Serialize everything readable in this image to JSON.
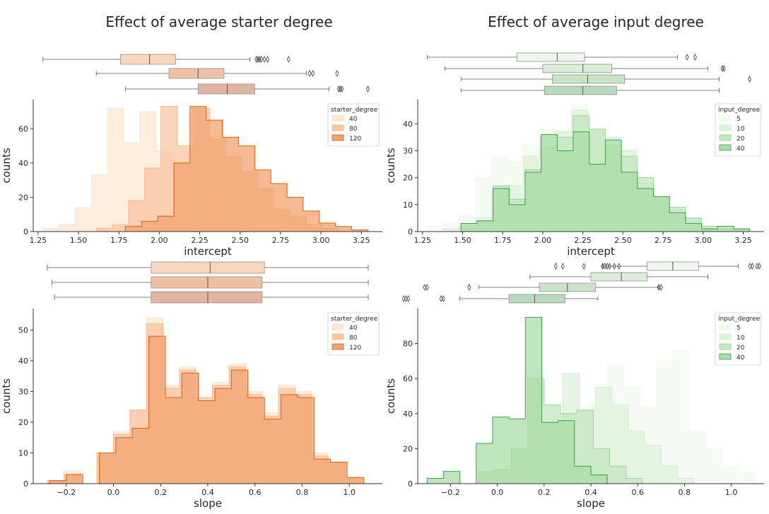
{
  "colors": {
    "starter": [
      "#fde5cf",
      "#f6b98a",
      "#d95f0e"
    ],
    "starter_fill": [
      "#fde6d2",
      "#f8c5a1",
      "#f1a36f"
    ],
    "starter_box": [
      "#f9d7bd",
      "#efc1a3",
      "#e0b6a3"
    ],
    "input": [
      "#f2f9f0",
      "#d2ecd0",
      "#9fd39a",
      "#3e9e52"
    ],
    "input_fill": [
      "#f2f9f0",
      "#ddf1da",
      "#c2e6bd",
      "#a9dca6"
    ],
    "input_box": [
      "#eef7ec",
      "#dbecd8",
      "#c9e3c6",
      "#b6d9bf"
    ]
  },
  "panels": [
    {
      "id": "starter-intercept",
      "title": "Effect of average starter degree",
      "legend_title": "starter_degree",
      "palette": "starter",
      "chart_data": {
        "type": "histogram",
        "xlabel": "intercept",
        "ylabel": "counts",
        "xlim": [
          1.22,
          3.38
        ],
        "ylim": [
          0,
          77
        ],
        "xticks": [
          "1.25",
          "1.50",
          "1.75",
          "2.00",
          "2.25",
          "2.50",
          "2.75",
          "3.00",
          "3.25"
        ],
        "xtick_values": [
          1.25,
          1.5,
          1.75,
          2.0,
          2.25,
          2.5,
          2.75,
          3.0,
          3.25
        ],
        "yticks": [
          0,
          20,
          40,
          60
        ],
        "series": [
          {
            "name": "40",
            "edges": [
              1.28,
              1.38,
              1.48,
              1.58,
              1.68,
              1.78,
              1.88,
              1.98,
              2.08,
              2.18,
              2.28,
              2.38,
              2.48,
              2.58,
              2.68,
              2.78,
              2.88,
              2.98
            ],
            "counts": [
              2,
              4,
              14,
              33,
              72,
              52,
              70,
              47,
              41,
              39,
              20,
              9,
              8,
              5,
              5,
              2,
              1
            ]
          },
          {
            "name": "80",
            "edges": [
              1.61,
              1.71,
              1.81,
              1.91,
              2.01,
              2.11,
              2.21,
              2.31,
              2.41,
              2.51,
              2.61,
              2.71,
              2.81,
              2.91,
              3.01,
              3.11
            ],
            "counts": [
              2,
              4,
              18,
              37,
              73,
              50,
              72,
              54,
              44,
              35,
              25,
              13,
              9,
              4,
              2
            ]
          },
          {
            "name": "120",
            "edges": [
              1.79,
              1.89,
              1.99,
              2.09,
              2.19,
              2.29,
              2.39,
              2.49,
              2.59,
              2.69,
              2.79,
              2.89,
              2.99,
              3.09,
              3.19,
              3.29
            ],
            "counts": [
              3,
              6,
              9,
              40,
              73,
              65,
              55,
              50,
              36,
              28,
              20,
              12,
              5,
              3,
              1
            ]
          }
        ],
        "boxes": [
          {
            "name": "40",
            "whisker_low": 1.28,
            "q1": 1.76,
            "median": 1.94,
            "q3": 2.1,
            "whisker_high": 2.56,
            "outliers": [
              2.6,
              2.61,
              2.62,
              2.63,
              2.65,
              2.67,
              2.8
            ]
          },
          {
            "name": "80",
            "whisker_low": 1.61,
            "q1": 2.06,
            "median": 2.24,
            "q3": 2.4,
            "whisker_high": 2.91,
            "outliers": [
              2.93,
              2.95,
              3.1
            ]
          },
          {
            "name": "120",
            "whisker_low": 1.79,
            "q1": 2.24,
            "median": 2.42,
            "q3": 2.59,
            "whisker_high": 3.05,
            "outliers": [
              3.11,
              3.12,
              3.13,
              3.29
            ]
          }
        ]
      }
    },
    {
      "id": "input-intercept",
      "title": "Effect of average input degree",
      "legend_title": "input_degree",
      "palette": "input",
      "chart_data": {
        "type": "histogram",
        "xlabel": "intercept",
        "ylabel": "counts",
        "xlim": [
          1.22,
          3.38
        ],
        "ylim": [
          0,
          49
        ],
        "xticks": [
          "1.25",
          "1.50",
          "1.75",
          "2.00",
          "2.25",
          "2.50",
          "2.75",
          "3.00",
          "3.25"
        ],
        "xtick_values": [
          1.25,
          1.5,
          1.75,
          2.0,
          2.25,
          2.5,
          2.75,
          3.0,
          3.25
        ],
        "yticks": [
          0,
          10,
          20,
          30,
          40
        ],
        "series": [
          {
            "name": "5",
            "edges": [
              1.28,
              1.38,
              1.48,
              1.58,
              1.68,
              1.78,
              1.88,
              1.98,
              2.08,
              2.18,
              2.28,
              2.38,
              2.48,
              2.58,
              2.68,
              2.78,
              2.88
            ],
            "counts": [
              2,
              3,
              6,
              20,
              28,
              26,
              32,
              38,
              34,
              47,
              35,
              28,
              20,
              10,
              6,
              2
            ]
          },
          {
            "name": "10",
            "edges": [
              1.38,
              1.48,
              1.58,
              1.68,
              1.78,
              1.88,
              1.98,
              2.08,
              2.18,
              2.28,
              2.38,
              2.48,
              2.58,
              2.68,
              2.78,
              2.88,
              2.98,
              3.08
            ],
            "counts": [
              1,
              2,
              5,
              15,
              17,
              28,
              35,
              37,
              45,
              38,
              35,
              30,
              18,
              12,
              8,
              5,
              2
            ]
          },
          {
            "name": "20",
            "edges": [
              1.49,
              1.59,
              1.69,
              1.79,
              1.89,
              1.99,
              2.09,
              2.19,
              2.29,
              2.39,
              2.49,
              2.59,
              2.69,
              2.79,
              2.89,
              2.99,
              3.09,
              3.19,
              3.29
            ],
            "counts": [
              1,
              4,
              17,
              12,
              23,
              31,
              35,
              43,
              38,
              32,
              28,
              20,
              13,
              9,
              5,
              2,
              1,
              1
            ]
          },
          {
            "name": "40",
            "edges": [
              1.49,
              1.59,
              1.69,
              1.79,
              1.89,
              1.99,
              2.09,
              2.19,
              2.29,
              2.39,
              2.49,
              2.59,
              2.69,
              2.79,
              2.89,
              2.99,
              3.09,
              3.19,
              3.29
            ],
            "counts": [
              3,
              4,
              16,
              10,
              22,
              36,
              30,
              37,
              25,
              34,
              22,
              16,
              13,
              7,
              3,
              1,
              2,
              1
            ]
          }
        ],
        "boxes": [
          {
            "name": "5",
            "whisker_low": 1.28,
            "q1": 1.84,
            "median": 2.09,
            "q3": 2.26,
            "whisker_high": 2.84,
            "outliers": [
              2.9,
              2.95
            ]
          },
          {
            "name": "10",
            "whisker_low": 1.39,
            "q1": 2.0,
            "median": 2.25,
            "q3": 2.43,
            "whisker_high": 3.03,
            "outliers": [
              3.12,
              3.13
            ]
          },
          {
            "name": "20",
            "whisker_low": 1.49,
            "q1": 2.06,
            "median": 2.28,
            "q3": 2.51,
            "whisker_high": 3.1,
            "outliers": [
              3.29
            ]
          },
          {
            "name": "40",
            "whisker_low": 1.49,
            "q1": 2.01,
            "median": 2.25,
            "q3": 2.46,
            "whisker_high": 3.1,
            "outliers": []
          }
        ]
      }
    },
    {
      "id": "starter-slope",
      "title": "",
      "legend_title": "starter_degree",
      "palette": "starter",
      "chart_data": {
        "type": "histogram",
        "xlabel": "slope",
        "ylabel": "counts",
        "xlim": [
          -0.34,
          1.14
        ],
        "ylim": [
          0,
          57
        ],
        "xticks": [
          "−0.2",
          "0.0",
          "0.2",
          "0.4",
          "0.6",
          "0.8",
          "1.0"
        ],
        "xtick_values": [
          -0.2,
          0.0,
          0.2,
          0.4,
          0.6,
          0.8,
          1.0
        ],
        "yticks": [
          0,
          10,
          20,
          30,
          40,
          50
        ],
        "series": [
          {
            "name": "40",
            "edges": [
              -0.28,
              -0.21,
              -0.14,
              -0.07,
              0.0,
              0.07,
              0.14,
              0.21,
              0.28,
              0.35,
              0.42,
              0.49,
              0.56,
              0.63,
              0.7,
              0.77,
              0.84,
              0.91,
              0.98,
              1.05
            ],
            "counts": [
              1,
              4,
              0,
              10,
              17,
              24,
              54,
              32,
              38,
              27,
              33,
              39,
              30,
              23,
              32,
              30,
              10,
              7,
              2
            ]
          },
          {
            "name": "80",
            "edges": [
              -0.28,
              -0.21,
              -0.14,
              -0.07,
              0.0,
              0.07,
              0.14,
              0.21,
              0.28,
              0.35,
              0.42,
              0.49,
              0.56,
              0.63,
              0.7,
              0.77,
              0.84,
              0.91,
              0.98,
              1.05
            ],
            "counts": [
              1,
              3,
              0,
              10,
              16,
              24,
              52,
              31,
              37,
              28,
              32,
              38,
              29,
              22,
              31,
              29,
              9,
              7,
              2
            ]
          },
          {
            "name": "120",
            "edges": [
              -0.27,
              -0.2,
              -0.13,
              -0.06,
              0.01,
              0.08,
              0.15,
              0.22,
              0.29,
              0.36,
              0.43,
              0.5,
              0.57,
              0.64,
              0.71,
              0.78,
              0.85,
              0.92,
              0.99,
              1.06
            ],
            "counts": [
              1,
              3,
              0,
              10,
              15,
              18,
              48,
              28,
              36,
              27,
              31,
              37,
              28,
              21,
              29,
              28,
              8,
              7,
              2
            ]
          }
        ],
        "boxes": [
          {
            "name": "40",
            "whisker_low": -0.28,
            "q1": 0.16,
            "median": 0.41,
            "q3": 0.64,
            "whisker_high": 1.08,
            "outliers": []
          },
          {
            "name": "80",
            "whisker_low": -0.26,
            "q1": 0.16,
            "median": 0.4,
            "q3": 0.63,
            "whisker_high": 1.08,
            "outliers": []
          },
          {
            "name": "120",
            "whisker_low": -0.25,
            "q1": 0.16,
            "median": 0.4,
            "q3": 0.63,
            "whisker_high": 1.08,
            "outliers": []
          }
        ]
      }
    },
    {
      "id": "input-slope",
      "title": "",
      "legend_title": "input_degree",
      "palette": "input",
      "chart_data": {
        "type": "histogram",
        "xlabel": "slope",
        "ylabel": "counts",
        "xlim": [
          -0.34,
          1.14
        ],
        "ylim": [
          0,
          100
        ],
        "xticks": [
          "−0.2",
          "0.0",
          "0.2",
          "0.4",
          "0.6",
          "0.8",
          "1.0"
        ],
        "xtick_values": [
          -0.2,
          0.0,
          0.2,
          0.4,
          0.6,
          0.8,
          1.0
        ],
        "yticks": [
          0,
          20,
          40,
          60,
          80
        ],
        "series": [
          {
            "name": "5",
            "edges": [
              0.4,
              0.47,
              0.54,
              0.61,
              0.68,
              0.75,
              0.82,
              0.89,
              0.96,
              1.03,
              1.1
            ],
            "counts": [
              45,
              68,
              55,
              44,
              70,
              76,
              30,
              20,
              10,
              6
            ]
          },
          {
            "name": "10",
            "edges": [
              0.14,
              0.21,
              0.28,
              0.35,
              0.42,
              0.49,
              0.56,
              0.63,
              0.7,
              0.77,
              0.84
            ],
            "counts": [
              18,
              30,
              63,
              42,
              55,
              45,
              30,
              22,
              10,
              3
            ]
          },
          {
            "name": "20",
            "edges": [
              -0.08,
              -0.01,
              0.06,
              0.13,
              0.2,
              0.27,
              0.34,
              0.41,
              0.48,
              0.55,
              0.62
            ],
            "counts": [
              7,
              8,
              20,
              60,
              45,
              40,
              42,
              20,
              10,
              3
            ]
          },
          {
            "name": "40",
            "edges": [
              -0.3,
              -0.23,
              -0.16,
              -0.09,
              -0.02,
              0.05,
              0.12,
              0.19,
              0.26,
              0.33,
              0.4,
              0.47
            ],
            "counts": [
              3,
              7,
              0,
              23,
              38,
              37,
              95,
              35,
              36,
              10,
              5
            ]
          }
        ],
        "boxes": [
          {
            "name": "5",
            "whisker_low": 0.45,
            "q1": 0.64,
            "median": 0.75,
            "q3": 0.86,
            "whisker_high": 1.03,
            "outliers": [
              0.25,
              0.28,
              0.37,
              0.45,
              0.46,
              0.47,
              0.48,
              0.5,
              0.52,
              1.08,
              1.09,
              1.11,
              1.12
            ]
          },
          {
            "name": "10",
            "whisker_low": 0.14,
            "q1": 0.4,
            "median": 0.53,
            "q3": 0.64,
            "whisker_high": 0.9,
            "outliers": []
          },
          {
            "name": "20",
            "whisker_low": -0.08,
            "q1": 0.18,
            "median": 0.3,
            "q3": 0.42,
            "whisker_high": 0.69,
            "outliers": [
              -0.31,
              -0.3,
              -0.12,
              0.69,
              0.7
            ]
          },
          {
            "name": "40",
            "whisker_low": -0.16,
            "q1": 0.05,
            "median": 0.16,
            "q3": 0.29,
            "whisker_high": 0.43,
            "outliers": [
              -0.4,
              -0.39,
              -0.38,
              -0.24,
              -0.23
            ]
          }
        ]
      }
    }
  ]
}
